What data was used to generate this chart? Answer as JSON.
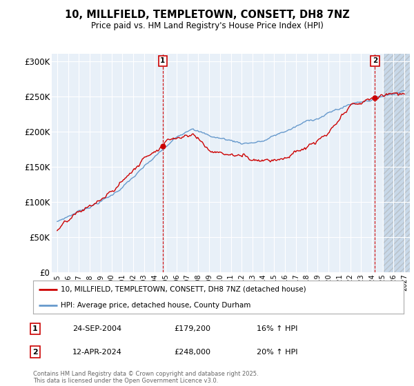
{
  "title": "10, MILLFIELD, TEMPLETOWN, CONSETT, DH8 7NZ",
  "subtitle": "Price paid vs. HM Land Registry's House Price Index (HPI)",
  "ylabel_ticks": [
    "£0",
    "£50K",
    "£100K",
    "£150K",
    "£200K",
    "£250K",
    "£300K"
  ],
  "ytick_values": [
    0,
    50000,
    100000,
    150000,
    200000,
    250000,
    300000
  ],
  "ylim": [
    0,
    310000
  ],
  "xlim_start": 1994.5,
  "xlim_end": 2027.5,
  "sale1": {
    "date_dec": 2004.73,
    "price": 179200,
    "label": "1"
  },
  "sale2": {
    "date_dec": 2024.28,
    "price": 248000,
    "label": "2"
  },
  "legend_line1": "10, MILLFIELD, TEMPLETOWN, CONSETT, DH8 7NZ (detached house)",
  "legend_line2": "HPI: Average price, detached house, County Durham",
  "table_row1": [
    "1",
    "24-SEP-2004",
    "£179,200",
    "16% ↑ HPI"
  ],
  "table_row2": [
    "2",
    "12-APR-2024",
    "£248,000",
    "20% ↑ HPI"
  ],
  "footer": "Contains HM Land Registry data © Crown copyright and database right 2025.\nThis data is licensed under the Open Government Licence v3.0.",
  "color_red": "#cc0000",
  "color_blue": "#6699cc",
  "color_bg_chart": "#e8f0f8",
  "color_grid": "#ffffff",
  "color_hatch_bg": "#dde8f0",
  "future_start": 2025.0
}
